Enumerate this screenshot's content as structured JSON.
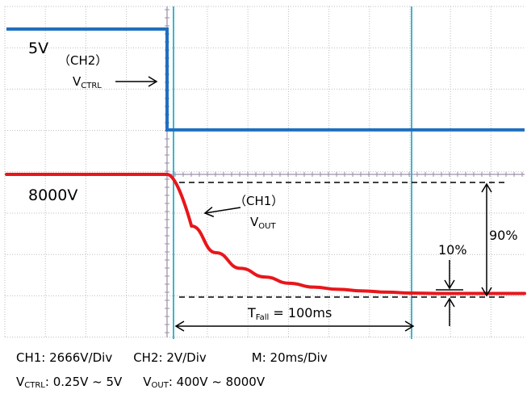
{
  "chart_data": {
    "type": "line",
    "title": "",
    "xlabel": "",
    "ylabel": "",
    "x_unit": "ms",
    "time_per_div_ms": 20,
    "grid": true,
    "legend": "none",
    "series": [
      {
        "name": "CH2",
        "color": "#1f6fbf",
        "voltage_per_div": 2,
        "x": [
          -40,
          0,
          0,
          100
        ],
        "y": [
          5,
          5,
          0.25,
          0.25
        ]
      },
      {
        "name": "CH1",
        "color": "#e8161b",
        "voltage_per_div": 2666,
        "x": [
          -40,
          0,
          10,
          20,
          30,
          40,
          50,
          60,
          70,
          80,
          90,
          100,
          110,
          120
        ],
        "y": [
          8000,
          8000,
          4700,
          3000,
          2000,
          1450,
          1050,
          800,
          660,
          560,
          480,
          420,
          400,
          400
        ]
      }
    ],
    "markers": {
      "vertical_cursors_ms": [
        0,
        100
      ],
      "tfall_ms": 100
    },
    "labels": {
      "ch2_level": "5V",
      "ch2_name": "（CH2）",
      "ch2_signal_main": "V",
      "ch2_signal_sub": "CTRL",
      "ch1_level": "8000V",
      "ch1_name": "（CH1）",
      "ch1_signal_main": "V",
      "ch1_signal_sub": "OUT",
      "pct_90": "90%",
      "pct_10": "10%",
      "tfall_main": "T",
      "tfall_sub": "Fall",
      "tfall_value": " = 100ms"
    }
  },
  "footer": {
    "ch1": "CH1: 2666V/Div",
    "ch2": "CH2: 2V/Div",
    "m": "M: 20ms/Div",
    "vctrl_main": "V",
    "vctrl_sub": "CTRL",
    "vctrl_range": ": 0.25V ~ 5V",
    "vout_main": "V",
    "vout_sub": "OUT",
    "vout_range": ": 400V ~ 8000V"
  }
}
